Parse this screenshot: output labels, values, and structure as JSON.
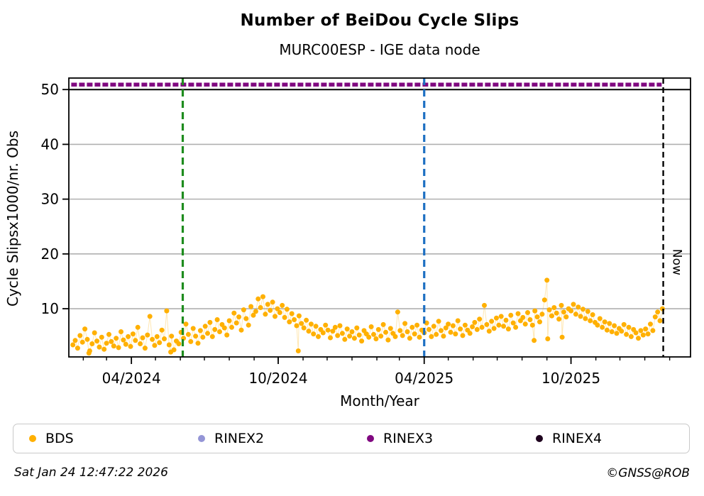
{
  "header": {
    "title": "Number of BeiDou Cycle Slips",
    "subtitle": "MURC00ESP - IGE data node"
  },
  "footer": {
    "timestamp": "Sat Jan 24 12:47:22 2026",
    "credit": "©GNSS@ROB"
  },
  "legend": {
    "items": [
      {
        "label": "BDS",
        "color": "#FFB000"
      },
      {
        "label": "RINEX2",
        "color": "#9495D6"
      },
      {
        "label": "RINEX3",
        "color": "#800880"
      },
      {
        "label": "RINEX4",
        "color": "#1E021E"
      }
    ]
  },
  "chart_data": {
    "type": "scatter",
    "title": "Number of BeiDou Cycle Slips",
    "subtitle": "MURC00ESP - IGE data node",
    "xlabel": "Month/Year",
    "ylabel": "Cycle Slipsx1000/nr. Obs",
    "x_unit": "days since 2024-01-01",
    "xlim": [
      13,
      788
    ],
    "ylim": [
      1.2,
      52.1
    ],
    "y_ticks": [
      10,
      20,
      30,
      40,
      50
    ],
    "x_ticks_major": [
      {
        "day": 91,
        "label": "04/2024"
      },
      {
        "day": 274,
        "label": "10/2024"
      },
      {
        "day": 456,
        "label": "04/2025"
      },
      {
        "day": 639,
        "label": "10/2025"
      }
    ],
    "x_ticks_minor": [
      31,
      60,
      91,
      121,
      152,
      182,
      213,
      244,
      274,
      305,
      335,
      366,
      397,
      425,
      456,
      486,
      517,
      547,
      578,
      609,
      639,
      670,
      700,
      731,
      762
    ],
    "grid": true,
    "grid_color": "#b0b0b0",
    "separator_line_y": 50,
    "event_lines": [
      {
        "name": "green-event-line",
        "day": 155,
        "color": "#1E8C1E",
        "style": "dashed",
        "label": ""
      },
      {
        "name": "blue-event-line",
        "day": 456,
        "color": "#1D6FC2",
        "style": "dashed",
        "label": ""
      },
      {
        "name": "now-line",
        "day": 754,
        "color": "#000000",
        "style": "dashed",
        "label": "Now"
      }
    ],
    "series": [
      {
        "name": "RINEX3",
        "type": "dotted-hline",
        "color": "#800880",
        "y": 50.9,
        "x_start_day": 16,
        "x_end_day": 752
      },
      {
        "name": "BDS",
        "type": "scatter",
        "color": "#FFB000",
        "points": [
          [
            18,
            3.4
          ],
          [
            21,
            4.2
          ],
          [
            24,
            2.8
          ],
          [
            27,
            5.1
          ],
          [
            30,
            3.9
          ],
          [
            33,
            6.3
          ],
          [
            36,
            4.4
          ],
          [
            38,
            1.9
          ],
          [
            39,
            2.3
          ],
          [
            42,
            3.6
          ],
          [
            45,
            5.6
          ],
          [
            48,
            4.1
          ],
          [
            51,
            3.0
          ],
          [
            54,
            4.8
          ],
          [
            57,
            2.6
          ],
          [
            60,
            3.7
          ],
          [
            63,
            5.3
          ],
          [
            66,
            4.0
          ],
          [
            69,
            3.2
          ],
          [
            72,
            4.6
          ],
          [
            75,
            2.9
          ],
          [
            78,
            5.8
          ],
          [
            81,
            4.3
          ],
          [
            84,
            3.5
          ],
          [
            87,
            4.9
          ],
          [
            90,
            3.1
          ],
          [
            93,
            5.4
          ],
          [
            96,
            4.2
          ],
          [
            99,
            6.6
          ],
          [
            102,
            3.6
          ],
          [
            105,
            4.7
          ],
          [
            108,
            2.8
          ],
          [
            111,
            5.2
          ],
          [
            114,
            8.6
          ],
          [
            117,
            4.4
          ],
          [
            120,
            3.3
          ],
          [
            123,
            4.9
          ],
          [
            126,
            3.8
          ],
          [
            129,
            6.1
          ],
          [
            132,
            4.5
          ],
          [
            135,
            9.6
          ],
          [
            138,
            3.4
          ],
          [
            140,
            2.1
          ],
          [
            141,
            5.0
          ],
          [
            144,
            2.5
          ],
          [
            147,
            4.1
          ],
          [
            150,
            3.6
          ],
          [
            153,
            5.7
          ],
          [
            156,
            4.6
          ],
          [
            159,
            7.2
          ],
          [
            162,
            5.3
          ],
          [
            165,
            4.0
          ],
          [
            168,
            6.4
          ],
          [
            171,
            5.0
          ],
          [
            174,
            3.7
          ],
          [
            177,
            6.0
          ],
          [
            180,
            4.8
          ],
          [
            183,
            6.8
          ],
          [
            186,
            5.5
          ],
          [
            189,
            7.5
          ],
          [
            192,
            4.9
          ],
          [
            195,
            6.2
          ],
          [
            198,
            8.0
          ],
          [
            201,
            5.8
          ],
          [
            204,
            7.1
          ],
          [
            207,
            6.5
          ],
          [
            210,
            5.2
          ],
          [
            213,
            7.8
          ],
          [
            216,
            6.6
          ],
          [
            219,
            9.2
          ],
          [
            222,
            7.4
          ],
          [
            225,
            8.5
          ],
          [
            228,
            6.1
          ],
          [
            231,
            9.8
          ],
          [
            234,
            8.2
          ],
          [
            237,
            7.0
          ],
          [
            240,
            10.4
          ],
          [
            243,
            8.8
          ],
          [
            246,
            9.5
          ],
          [
            249,
            11.8
          ],
          [
            252,
            10.2
          ],
          [
            255,
            12.2
          ],
          [
            258,
            9.0
          ],
          [
            261,
            10.8
          ],
          [
            264,
            9.7
          ],
          [
            267,
            11.2
          ],
          [
            270,
            8.6
          ],
          [
            273,
            10.0
          ],
          [
            276,
            9.3
          ],
          [
            279,
            10.6
          ],
          [
            282,
            8.4
          ],
          [
            285,
            9.9
          ],
          [
            288,
            7.6
          ],
          [
            291,
            9.1
          ],
          [
            294,
            8.0
          ],
          [
            297,
            6.9
          ],
          [
            299,
            2.3
          ],
          [
            300,
            8.7
          ],
          [
            303,
            7.3
          ],
          [
            306,
            6.5
          ],
          [
            309,
            7.9
          ],
          [
            312,
            5.9
          ],
          [
            315,
            7.2
          ],
          [
            318,
            5.4
          ],
          [
            321,
            6.8
          ],
          [
            324,
            4.9
          ],
          [
            327,
            6.2
          ],
          [
            330,
            5.6
          ],
          [
            333,
            7.0
          ],
          [
            336,
            6.1
          ],
          [
            339,
            4.7
          ],
          [
            342,
            5.9
          ],
          [
            345,
            6.6
          ],
          [
            348,
            5.1
          ],
          [
            351,
            6.9
          ],
          [
            354,
            5.5
          ],
          [
            357,
            4.4
          ],
          [
            360,
            6.3
          ],
          [
            363,
            5.0
          ],
          [
            366,
            5.8
          ],
          [
            369,
            4.6
          ],
          [
            372,
            6.5
          ],
          [
            375,
            5.2
          ],
          [
            378,
            4.1
          ],
          [
            381,
            6.0
          ],
          [
            384,
            5.4
          ],
          [
            387,
            4.8
          ],
          [
            390,
            6.7
          ],
          [
            393,
            5.3
          ],
          [
            396,
            4.5
          ],
          [
            399,
            6.2
          ],
          [
            402,
            5.0
          ],
          [
            405,
            7.1
          ],
          [
            408,
            5.7
          ],
          [
            411,
            4.3
          ],
          [
            414,
            6.4
          ],
          [
            417,
            5.5
          ],
          [
            420,
            4.9
          ],
          [
            423,
            9.4
          ],
          [
            426,
            6.0
          ],
          [
            429,
            5.1
          ],
          [
            432,
            7.3
          ],
          [
            435,
            5.8
          ],
          [
            438,
            4.6
          ],
          [
            441,
            6.6
          ],
          [
            444,
            5.4
          ],
          [
            447,
            7.0
          ],
          [
            450,
            4.8
          ],
          [
            453,
            6.1
          ],
          [
            456,
            5.6
          ],
          [
            459,
            7.4
          ],
          [
            462,
            6.2
          ],
          [
            465,
            4.9
          ],
          [
            468,
            6.8
          ],
          [
            471,
            5.3
          ],
          [
            474,
            7.7
          ],
          [
            477,
            6.0
          ],
          [
            480,
            5.0
          ],
          [
            483,
            6.5
          ],
          [
            486,
            7.2
          ],
          [
            489,
            5.7
          ],
          [
            492,
            6.9
          ],
          [
            495,
            5.4
          ],
          [
            498,
            7.8
          ],
          [
            501,
            6.3
          ],
          [
            504,
            5.1
          ],
          [
            507,
            7.0
          ],
          [
            510,
            6.1
          ],
          [
            513,
            5.5
          ],
          [
            516,
            6.7
          ],
          [
            519,
            7.5
          ],
          [
            522,
            6.2
          ],
          [
            525,
            8.1
          ],
          [
            528,
            6.6
          ],
          [
            531,
            10.6
          ],
          [
            534,
            7.1
          ],
          [
            537,
            5.9
          ],
          [
            540,
            7.7
          ],
          [
            543,
            6.4
          ],
          [
            546,
            8.3
          ],
          [
            549,
            7.0
          ],
          [
            552,
            8.6
          ],
          [
            555,
            6.8
          ],
          [
            558,
            7.9
          ],
          [
            561,
            6.3
          ],
          [
            564,
            8.8
          ],
          [
            567,
            7.4
          ],
          [
            570,
            6.6
          ],
          [
            573,
            9.1
          ],
          [
            576,
            7.8
          ],
          [
            579,
            8.4
          ],
          [
            582,
            7.2
          ],
          [
            585,
            9.3
          ],
          [
            588,
            8.0
          ],
          [
            591,
            7.0
          ],
          [
            593,
            4.2
          ],
          [
            594,
            9.6
          ],
          [
            597,
            8.5
          ],
          [
            600,
            7.6
          ],
          [
            603,
            9.0
          ],
          [
            606,
            11.6
          ],
          [
            609,
            15.2
          ],
          [
            610,
            4.5
          ],
          [
            612,
            9.8
          ],
          [
            615,
            8.7
          ],
          [
            618,
            10.2
          ],
          [
            621,
            9.2
          ],
          [
            624,
            8.1
          ],
          [
            627,
            10.6
          ],
          [
            628,
            4.8
          ],
          [
            630,
            9.4
          ],
          [
            633,
            8.5
          ],
          [
            636,
            10.0
          ],
          [
            639,
            9.6
          ],
          [
            642,
            10.8
          ],
          [
            645,
            9.0
          ],
          [
            648,
            10.3
          ],
          [
            651,
            8.6
          ],
          [
            654,
            9.9
          ],
          [
            657,
            8.2
          ],
          [
            660,
            9.5
          ],
          [
            663,
            7.8
          ],
          [
            666,
            8.9
          ],
          [
            669,
            7.5
          ],
          [
            672,
            7.0
          ],
          [
            675,
            8.2
          ],
          [
            678,
            6.6
          ],
          [
            681,
            7.6
          ],
          [
            684,
            6.1
          ],
          [
            687,
            7.3
          ],
          [
            690,
            5.8
          ],
          [
            693,
            6.9
          ],
          [
            696,
            5.5
          ],
          [
            699,
            6.4
          ],
          [
            702,
            5.9
          ],
          [
            705,
            7.1
          ],
          [
            708,
            5.3
          ],
          [
            711,
            6.6
          ],
          [
            714,
            4.9
          ],
          [
            717,
            6.2
          ],
          [
            720,
            5.6
          ],
          [
            723,
            4.6
          ],
          [
            726,
            6.0
          ],
          [
            729,
            5.2
          ],
          [
            732,
            6.3
          ],
          [
            735,
            5.4
          ],
          [
            738,
            7.2
          ],
          [
            741,
            6.0
          ],
          [
            744,
            8.5
          ],
          [
            747,
            9.4
          ],
          [
            750,
            7.8
          ],
          [
            753,
            10.0
          ]
        ]
      }
    ]
  }
}
